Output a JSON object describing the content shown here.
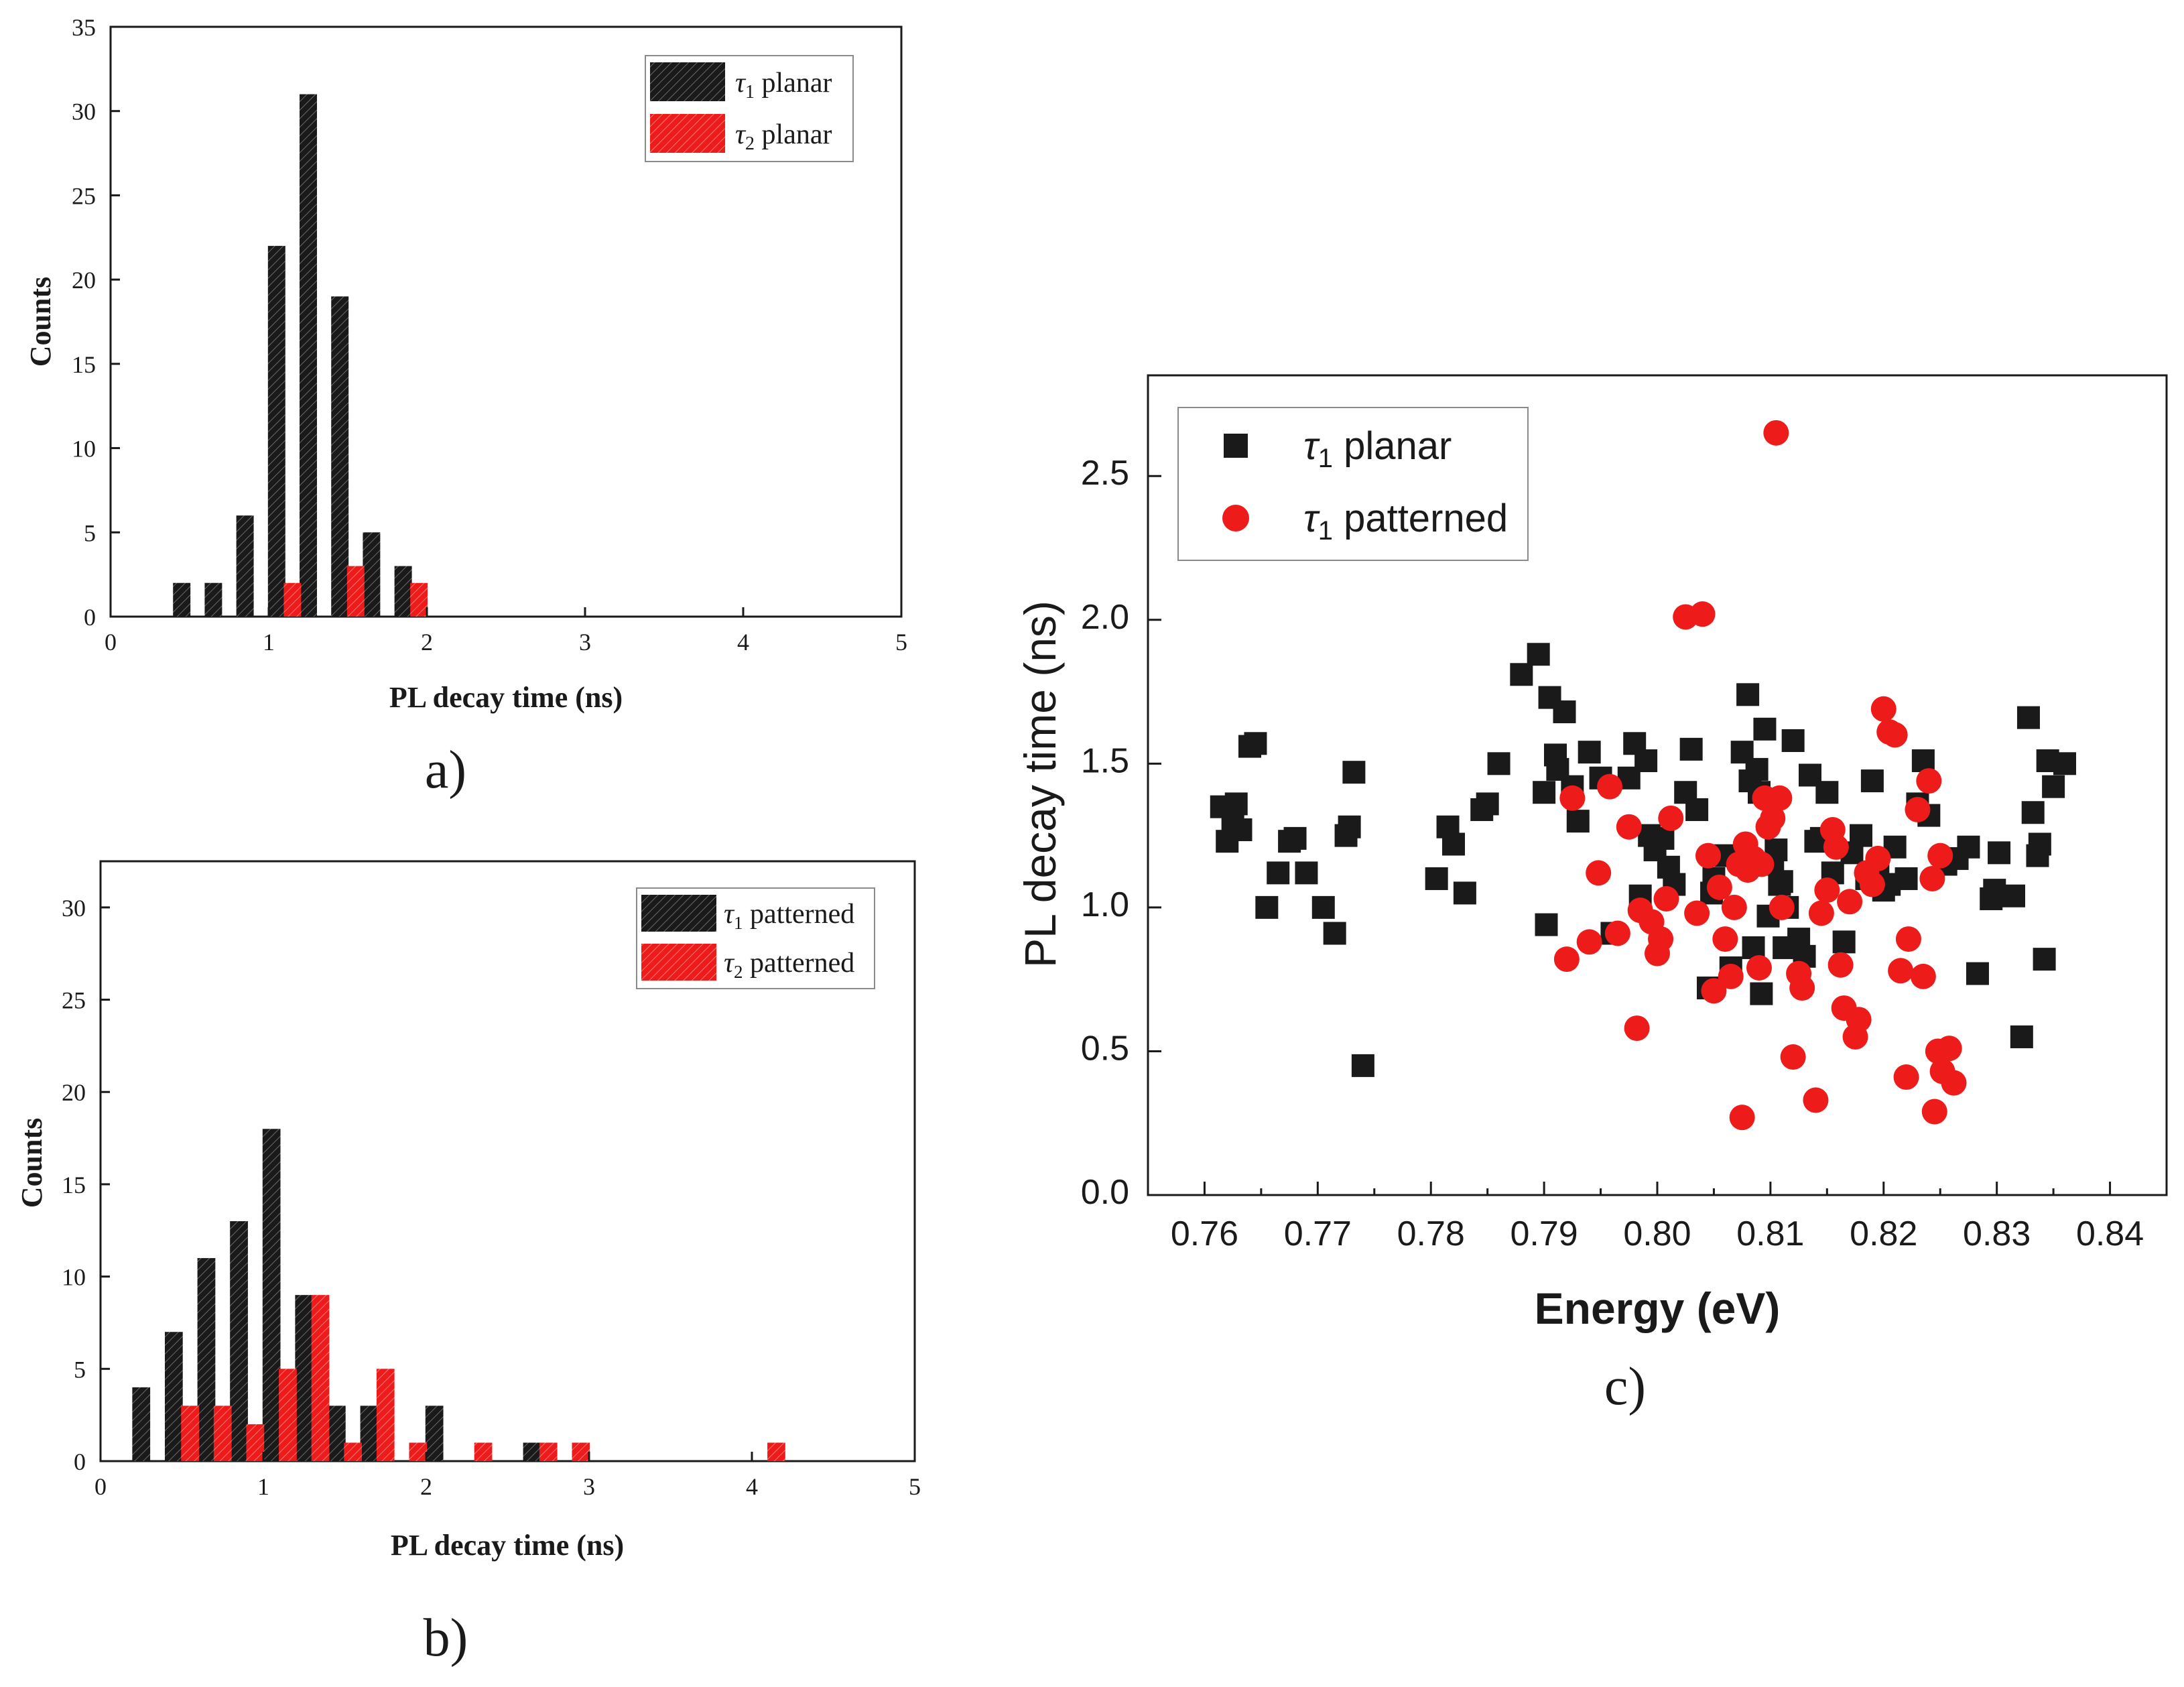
{
  "colors": {
    "black": "#1a1a1a",
    "red": "#ee1b1b"
  },
  "chart_data": [
    {
      "type": "bar",
      "panel_label": "a)",
      "xlabel": "PL decay time (ns)",
      "ylabel": "Counts",
      "xlim": [
        0,
        5
      ],
      "ylim": [
        0,
        35
      ],
      "xticks": [
        "0",
        "1",
        "2",
        "3",
        "4",
        "5"
      ],
      "yticks": [
        "0",
        "5",
        "10",
        "15",
        "20",
        "25",
        "30",
        "35"
      ],
      "legend_position": "top-right",
      "series": [
        {
          "name": "τ",
          "sub": "1",
          "suffix": " planar",
          "color": "black",
          "x": [
            0.45,
            0.65,
            0.85,
            1.05,
            1.25,
            1.45,
            1.65,
            1.85
          ],
          "values": [
            2,
            2,
            6,
            22,
            31,
            19,
            5,
            3
          ]
        },
        {
          "name": "τ",
          "sub": "2",
          "suffix": " planar",
          "color": "red",
          "x": [
            1.15,
            1.55,
            1.95
          ],
          "values": [
            2,
            3,
            2
          ]
        }
      ]
    },
    {
      "type": "bar",
      "panel_label": "b)",
      "xlabel": "PL decay time (ns)",
      "ylabel": "Counts",
      "xlim": [
        0,
        5
      ],
      "ylim": [
        0,
        32.5
      ],
      "xticks": [
        "0",
        "1",
        "2",
        "3",
        "4",
        "5"
      ],
      "yticks": [
        "0",
        "5",
        "10",
        "15",
        "20",
        "25",
        "30"
      ],
      "legend_position": "top-right",
      "series": [
        {
          "name": "τ",
          "sub": "1",
          "suffix": " patterned",
          "color": "black",
          "x": [
            0.25,
            0.45,
            0.65,
            0.85,
            1.05,
            1.25,
            1.45,
            1.65,
            2.05,
            2.65
          ],
          "values": [
            4,
            7,
            11,
            13,
            18,
            9,
            3,
            3,
            3,
            1
          ]
        },
        {
          "name": "τ",
          "sub": "2",
          "suffix": " patterned",
          "color": "red",
          "x": [
            0.55,
            0.75,
            0.95,
            1.15,
            1.35,
            1.55,
            1.75,
            1.95,
            2.35,
            2.75,
            2.95,
            4.15
          ],
          "values": [
            3,
            3,
            2,
            5,
            9,
            1,
            5,
            1,
            1,
            1,
            1,
            1
          ]
        }
      ]
    },
    {
      "type": "scatter",
      "panel_label": "c)",
      "xlabel": "Energy (eV)",
      "ylabel": "PL decay time (ns)",
      "xlim": [
        0.755,
        0.845
      ],
      "ylim": [
        0,
        2.85
      ],
      "xticks": [
        "0.76",
        "0.77",
        "0.78",
        "0.79",
        "0.80",
        "0.81",
        "0.82",
        "0.83",
        "0.84"
      ],
      "yticks": [
        "0.0",
        "0.5",
        "1.0",
        "1.5",
        "2.0",
        "2.5"
      ],
      "legend_position": "top-left",
      "series": [
        {
          "name": "τ",
          "sub": "1",
          "suffix": " planar",
          "color": "black",
          "marker": "square",
          "points": [
            [
              0.7615,
              1.35
            ],
            [
              0.762,
              1.23
            ],
            [
              0.7625,
              1.3
            ],
            [
              0.7628,
              1.36
            ],
            [
              0.7632,
              1.27
            ],
            [
              0.764,
              1.56
            ],
            [
              0.7645,
              1.57
            ],
            [
              0.7655,
              1.0
            ],
            [
              0.7665,
              1.12
            ],
            [
              0.7675,
              1.23
            ],
            [
              0.768,
              1.24
            ],
            [
              0.769,
              1.12
            ],
            [
              0.7705,
              1.0
            ],
            [
              0.7715,
              0.91
            ],
            [
              0.7725,
              1.25
            ],
            [
              0.7728,
              1.28
            ],
            [
              0.7732,
              1.47
            ],
            [
              0.774,
              0.45
            ],
            [
              0.7805,
              1.1
            ],
            [
              0.7815,
              1.28
            ],
            [
              0.782,
              1.22
            ],
            [
              0.783,
              1.05
            ],
            [
              0.7845,
              1.34
            ],
            [
              0.785,
              1.36
            ],
            [
              0.786,
              1.5
            ],
            [
              0.788,
              1.81
            ],
            [
              0.7895,
              1.88
            ],
            [
              0.79,
              1.4
            ],
            [
              0.7902,
              0.94
            ],
            [
              0.7905,
              1.73
            ],
            [
              0.791,
              1.53
            ],
            [
              0.7912,
              1.48
            ],
            [
              0.7918,
              1.68
            ],
            [
              0.7925,
              1.42
            ],
            [
              0.793,
              1.3
            ],
            [
              0.794,
              1.54
            ],
            [
              0.795,
              1.45
            ],
            [
              0.796,
              0.91
            ],
            [
              0.7975,
              1.45
            ],
            [
              0.798,
              1.57
            ],
            [
              0.7985,
              1.04
            ],
            [
              0.799,
              1.51
            ],
            [
              0.7993,
              1.25
            ],
            [
              0.7998,
              1.2
            ],
            [
              0.8005,
              1.24
            ],
            [
              0.801,
              1.14
            ],
            [
              0.8015,
              1.08
            ],
            [
              0.8025,
              1.4
            ],
            [
              0.803,
              1.55
            ],
            [
              0.8035,
              1.34
            ],
            [
              0.8045,
              0.72
            ],
            [
              0.8048,
              1.05
            ],
            [
              0.805,
              1.1
            ],
            [
              0.806,
              1.18
            ],
            [
              0.8065,
              0.79
            ],
            [
              0.8075,
              1.54
            ],
            [
              0.808,
              1.74
            ],
            [
              0.8082,
              1.44
            ],
            [
              0.8085,
              0.86
            ],
            [
              0.8088,
              1.48
            ],
            [
              0.809,
              1.4
            ],
            [
              0.8092,
              0.7
            ],
            [
              0.8095,
              1.62
            ],
            [
              0.8098,
              0.97
            ],
            [
              0.8102,
              1.15
            ],
            [
              0.8105,
              1.2
            ],
            [
              0.8108,
              1.08
            ],
            [
              0.811,
              1.09
            ],
            [
              0.8112,
              0.86
            ],
            [
              0.8115,
              1.0
            ],
            [
              0.812,
              1.58
            ],
            [
              0.8125,
              0.89
            ],
            [
              0.813,
              0.83
            ],
            [
              0.8135,
              1.46
            ],
            [
              0.814,
              1.23
            ],
            [
              0.8145,
              1.24
            ],
            [
              0.815,
              1.4
            ],
            [
              0.8155,
              1.12
            ],
            [
              0.8165,
              0.88
            ],
            [
              0.8172,
              1.19
            ],
            [
              0.818,
              1.25
            ],
            [
              0.8185,
              1.1
            ],
            [
              0.819,
              1.44
            ],
            [
              0.8195,
              1.13
            ],
            [
              0.82,
              1.06
            ],
            [
              0.8205,
              1.08
            ],
            [
              0.821,
              1.21
            ],
            [
              0.822,
              1.1
            ],
            [
              0.823,
              1.36
            ],
            [
              0.8235,
              1.51
            ],
            [
              0.824,
              1.32
            ],
            [
              0.8255,
              1.15
            ],
            [
              0.8265,
              1.17
            ],
            [
              0.8275,
              1.21
            ],
            [
              0.8283,
              0.77
            ],
            [
              0.8295,
              1.03
            ],
            [
              0.8298,
              1.06
            ],
            [
              0.8302,
              1.19
            ],
            [
              0.8315,
              1.04
            ],
            [
              0.8322,
              0.55
            ],
            [
              0.8328,
              1.66
            ],
            [
              0.8332,
              1.33
            ],
            [
              0.8336,
              1.18
            ],
            [
              0.8338,
              1.22
            ],
            [
              0.8342,
              0.82
            ],
            [
              0.8345,
              1.51
            ],
            [
              0.835,
              1.42
            ],
            [
              0.836,
              1.5
            ]
          ]
        },
        {
          "name": "τ",
          "sub": "1",
          "suffix": " patterned",
          "color": "red",
          "marker": "circle",
          "points": [
            [
              0.792,
              0.82
            ],
            [
              0.7925,
              1.38
            ],
            [
              0.794,
              0.88
            ],
            [
              0.7948,
              1.12
            ],
            [
              0.7958,
              1.42
            ],
            [
              0.7965,
              0.91
            ],
            [
              0.7975,
              1.28
            ],
            [
              0.7982,
              0.58
            ],
            [
              0.7985,
              0.99
            ],
            [
              0.7995,
              0.95
            ],
            [
              0.8,
              0.84
            ],
            [
              0.8003,
              0.89
            ],
            [
              0.8008,
              1.03
            ],
            [
              0.8012,
              1.31
            ],
            [
              0.8025,
              2.01
            ],
            [
              0.8035,
              0.98
            ],
            [
              0.804,
              2.02
            ],
            [
              0.8045,
              1.18
            ],
            [
              0.805,
              0.71
            ],
            [
              0.8055,
              1.07
            ],
            [
              0.806,
              0.89
            ],
            [
              0.8065,
              0.76
            ],
            [
              0.8068,
              1.0
            ],
            [
              0.8072,
              1.15
            ],
            [
              0.8075,
              0.27
            ],
            [
              0.8078,
              1.22
            ],
            [
              0.808,
              1.13
            ],
            [
              0.8085,
              1.17
            ],
            [
              0.809,
              0.79
            ],
            [
              0.8092,
              1.15
            ],
            [
              0.8095,
              1.38
            ],
            [
              0.8098,
              1.28
            ],
            [
              0.8102,
              1.31
            ],
            [
              0.8105,
              2.65
            ],
            [
              0.8108,
              1.38
            ],
            [
              0.811,
              1.0
            ],
            [
              0.812,
              0.48
            ],
            [
              0.8125,
              0.77
            ],
            [
              0.8128,
              0.72
            ],
            [
              0.814,
              0.33
            ],
            [
              0.8145,
              0.98
            ],
            [
              0.815,
              1.06
            ],
            [
              0.8155,
              1.27
            ],
            [
              0.8158,
              1.21
            ],
            [
              0.8162,
              0.8
            ],
            [
              0.8165,
              0.65
            ],
            [
              0.817,
              1.02
            ],
            [
              0.8175,
              0.55
            ],
            [
              0.8178,
              0.61
            ],
            [
              0.8185,
              1.12
            ],
            [
              0.819,
              1.08
            ],
            [
              0.8195,
              1.17
            ],
            [
              0.82,
              1.69
            ],
            [
              0.8205,
              1.61
            ],
            [
              0.821,
              1.6
            ],
            [
              0.8215,
              0.78
            ],
            [
              0.822,
              0.41
            ],
            [
              0.8222,
              0.89
            ],
            [
              0.823,
              1.34
            ],
            [
              0.8235,
              0.76
            ],
            [
              0.824,
              1.44
            ],
            [
              0.8243,
              1.1
            ],
            [
              0.8245,
              0.29
            ],
            [
              0.8248,
              0.5
            ],
            [
              0.825,
              1.18
            ],
            [
              0.8252,
              0.43
            ],
            [
              0.8258,
              0.51
            ],
            [
              0.8262,
              0.39
            ]
          ]
        }
      ]
    }
  ]
}
